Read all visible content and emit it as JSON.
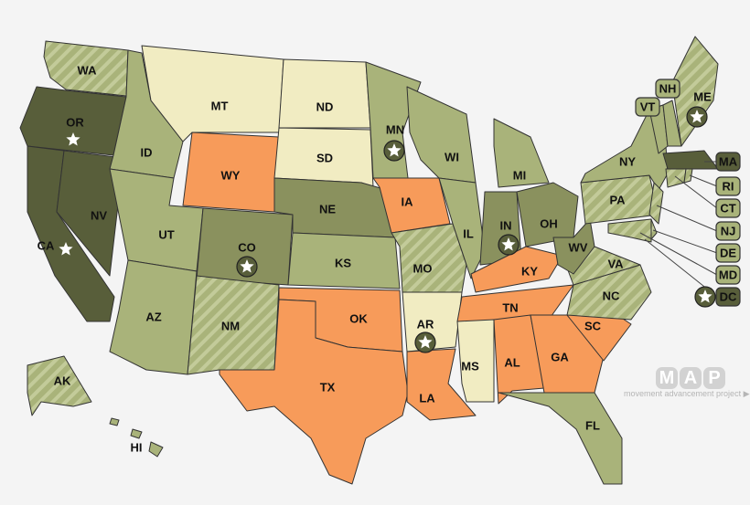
{
  "colors": {
    "background": "#f4f4f4",
    "dark": "#585e3a",
    "medium": "#8a915e",
    "light": "#a9b37a",
    "hatched": "#a9b37a",
    "hatch_stripe": "#c3cb9a",
    "orange": "#f79b5a",
    "cream": "#f1ecc2"
  },
  "states": [
    {
      "abbr": "WA",
      "status": "hatched"
    },
    {
      "abbr": "OR",
      "status": "dark",
      "star": true
    },
    {
      "abbr": "CA",
      "status": "dark",
      "star": true
    },
    {
      "abbr": "NV",
      "status": "dark"
    },
    {
      "abbr": "ID",
      "status": "light"
    },
    {
      "abbr": "MT",
      "status": "cream"
    },
    {
      "abbr": "WY",
      "status": "orange"
    },
    {
      "abbr": "UT",
      "status": "light"
    },
    {
      "abbr": "CO",
      "status": "medium",
      "star": true
    },
    {
      "abbr": "AZ",
      "status": "light"
    },
    {
      "abbr": "NM",
      "status": "hatched"
    },
    {
      "abbr": "ND",
      "status": "cream"
    },
    {
      "abbr": "SD",
      "status": "cream"
    },
    {
      "abbr": "NE",
      "status": "medium"
    },
    {
      "abbr": "KS",
      "status": "light"
    },
    {
      "abbr": "OK",
      "status": "orange"
    },
    {
      "abbr": "TX",
      "status": "orange"
    },
    {
      "abbr": "MN",
      "status": "light",
      "star": true
    },
    {
      "abbr": "IA",
      "status": "orange"
    },
    {
      "abbr": "MO",
      "status": "hatched"
    },
    {
      "abbr": "AR",
      "status": "cream",
      "star": true
    },
    {
      "abbr": "LA",
      "status": "orange"
    },
    {
      "abbr": "WI",
      "status": "light"
    },
    {
      "abbr": "IL",
      "status": "light"
    },
    {
      "abbr": "MI",
      "status": "light"
    },
    {
      "abbr": "IN",
      "status": "medium",
      "star": true
    },
    {
      "abbr": "OH",
      "status": "medium"
    },
    {
      "abbr": "KY",
      "status": "orange"
    },
    {
      "abbr": "TN",
      "status": "orange"
    },
    {
      "abbr": "MS",
      "status": "cream"
    },
    {
      "abbr": "AL",
      "status": "orange"
    },
    {
      "abbr": "GA",
      "status": "orange"
    },
    {
      "abbr": "SC",
      "status": "orange"
    },
    {
      "abbr": "FL",
      "status": "light"
    },
    {
      "abbr": "NC",
      "status": "hatched"
    },
    {
      "abbr": "VA",
      "status": "hatched"
    },
    {
      "abbr": "WV",
      "status": "medium"
    },
    {
      "abbr": "PA",
      "status": "hatched"
    },
    {
      "abbr": "NY",
      "status": "light"
    },
    {
      "abbr": "NJ",
      "status": "hatched"
    },
    {
      "abbr": "VT",
      "status": "light"
    },
    {
      "abbr": "NH",
      "status": "light"
    },
    {
      "abbr": "ME",
      "status": "hatched",
      "star": true
    },
    {
      "abbr": "MA",
      "status": "dark"
    },
    {
      "abbr": "CT",
      "status": "hatched"
    },
    {
      "abbr": "RI",
      "status": "hatched"
    },
    {
      "abbr": "MD",
      "status": "hatched"
    },
    {
      "abbr": "DE",
      "status": "hatched"
    },
    {
      "abbr": "AK",
      "status": "hatched"
    },
    {
      "abbr": "HI",
      "status": "light"
    },
    {
      "abbr": "DC",
      "status": "dark",
      "star": true
    }
  ],
  "logo": {
    "letters": [
      "M",
      "A",
      "P"
    ],
    "subtitle": "movement advancement project ▶"
  }
}
